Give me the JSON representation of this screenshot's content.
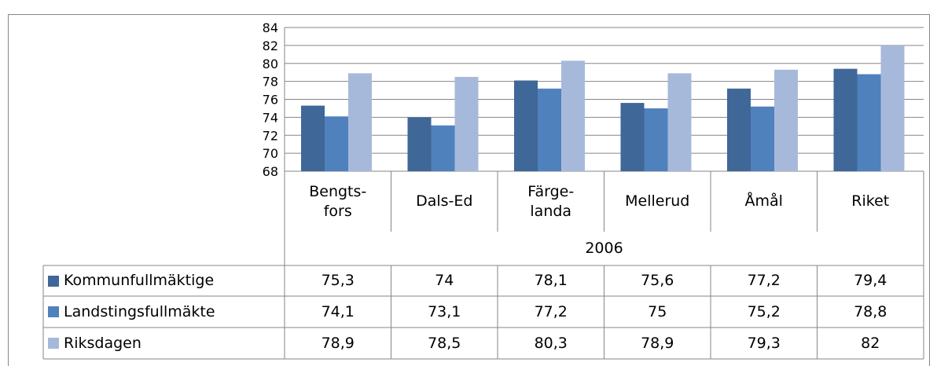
{
  "chart_data": {
    "type": "bar",
    "categories": [
      "Bengts-\nfors",
      "Dals-Ed",
      "Färge-\nlanda",
      "Mellerud",
      "Åmål",
      "Riket"
    ],
    "group_label": "2006",
    "series": [
      {
        "name": "Kommunfullmäktige",
        "color": "#3f6797",
        "values": [
          75.3,
          74,
          78.1,
          75.6,
          77.2,
          79.4
        ],
        "value_labels": [
          "75,3",
          "74",
          "78,1",
          "75,6",
          "77,2",
          "79,4"
        ]
      },
      {
        "name": "Landstingsfullmäkte",
        "color": "#4f81bd",
        "values": [
          74.1,
          73.1,
          77.2,
          75,
          75.2,
          78.8
        ],
        "value_labels": [
          "74,1",
          "73,1",
          "77,2",
          "75",
          "75,2",
          "78,8"
        ]
      },
      {
        "name": "Riksdagen",
        "color": "#a7b9da",
        "values": [
          78.9,
          78.5,
          80.3,
          78.9,
          79.3,
          82
        ],
        "value_labels": [
          "78,9",
          "78,5",
          "80,3",
          "78,9",
          "79,3",
          "82"
        ]
      }
    ],
    "ylim": [
      68,
      84
    ],
    "yticks": [
      68,
      70,
      72,
      74,
      76,
      78,
      80,
      82,
      84
    ],
    "grid": true
  }
}
